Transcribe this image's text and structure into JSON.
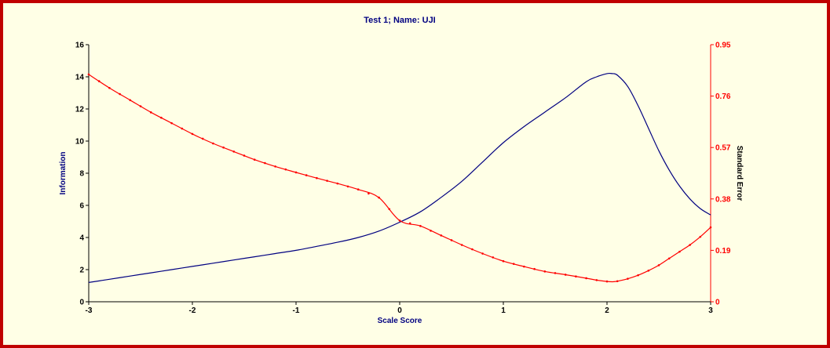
{
  "chart_data": {
    "type": "line",
    "title": "Test   1; Name: UJI",
    "xlabel": "Scale Score",
    "ylabel_left": "Information",
    "ylabel_right": "Standard Error",
    "xlim": [
      -3,
      3
    ],
    "ylim_left": [
      0,
      16
    ],
    "ylim_right": [
      0,
      0.95
    ],
    "x_ticks": [
      "-3",
      "-2",
      "-1",
      "0",
      "1",
      "2",
      "3"
    ],
    "y_left_ticks": [
      "0",
      "2",
      "4",
      "6",
      "8",
      "10",
      "12",
      "14",
      "16"
    ],
    "y_right_ticks": [
      "0",
      "0.19",
      "0.38",
      "0.57",
      "0.76",
      "0.95"
    ],
    "colors": {
      "information": "#000080",
      "standard_error": "#ff0000",
      "title": "#000080",
      "axis_left": "#000000",
      "axis_right": "#ff0000",
      "frame": "#c00000",
      "background": "#ffffe6"
    },
    "series": [
      {
        "key": "information",
        "axis": "left",
        "x": [
          -3,
          -2.8,
          -2.6,
          -2.4,
          -2.2,
          -2.0,
          -1.8,
          -1.6,
          -1.4,
          -1.2,
          -1.0,
          -0.8,
          -0.6,
          -0.4,
          -0.2,
          0,
          0.2,
          0.4,
          0.6,
          0.8,
          1.0,
          1.2,
          1.4,
          1.6,
          1.8,
          1.9,
          2.0,
          2.05,
          2.1,
          2.2,
          2.3,
          2.4,
          2.5,
          2.6,
          2.7,
          2.8,
          2.9,
          3.0
        ],
        "y": [
          1.2,
          1.4,
          1.6,
          1.8,
          2.0,
          2.2,
          2.4,
          2.6,
          2.8,
          3.0,
          3.2,
          3.45,
          3.7,
          4.0,
          4.4,
          4.95,
          5.6,
          6.5,
          7.5,
          8.7,
          9.9,
          10.9,
          11.8,
          12.7,
          13.7,
          14.0,
          14.2,
          14.2,
          14.1,
          13.4,
          12.2,
          10.8,
          9.4,
          8.2,
          7.2,
          6.4,
          5.8,
          5.4
        ]
      },
      {
        "key": "standard_error",
        "axis": "right",
        "x": [
          -3,
          -2.8,
          -2.6,
          -2.4,
          -2.2,
          -2.0,
          -1.8,
          -1.6,
          -1.4,
          -1.2,
          -1.0,
          -0.8,
          -0.6,
          -0.4,
          -0.2,
          0,
          0.2,
          0.4,
          0.6,
          0.8,
          1.0,
          1.2,
          1.4,
          1.6,
          1.8,
          1.9,
          2.0,
          2.05,
          2.1,
          2.2,
          2.3,
          2.4,
          2.5,
          2.6,
          2.7,
          2.8,
          2.9,
          3.0
        ],
        "y": [
          0.84,
          0.79,
          0.745,
          0.7,
          0.66,
          0.62,
          0.585,
          0.555,
          0.525,
          0.5,
          0.478,
          0.457,
          0.437,
          0.415,
          0.385,
          0.3,
          0.28,
          0.245,
          0.21,
          0.178,
          0.15,
          0.13,
          0.112,
          0.1,
          0.087,
          0.08,
          0.075,
          0.074,
          0.076,
          0.085,
          0.098,
          0.115,
          0.135,
          0.16,
          0.185,
          0.21,
          0.24,
          0.275
        ]
      }
    ]
  }
}
